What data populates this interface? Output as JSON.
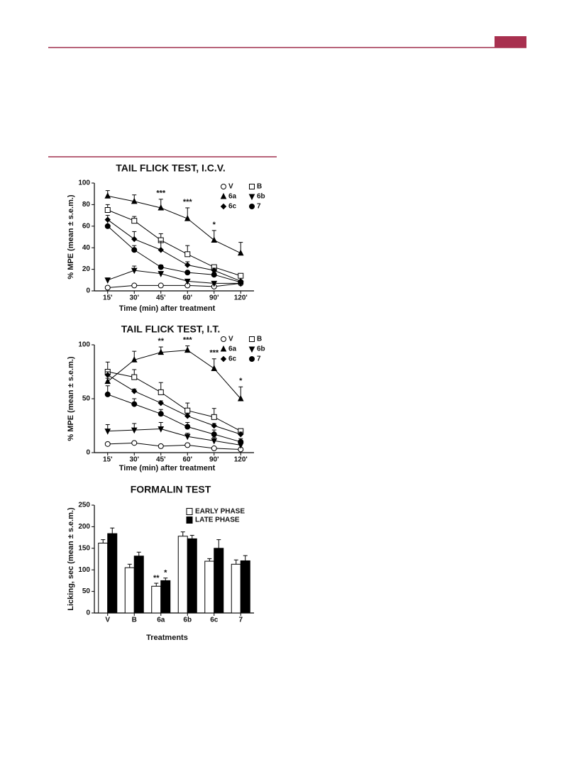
{
  "chart_data": [
    {
      "type": "line",
      "title": "TAIL FLICK TEST, I.C.V.",
      "x_label": "Time (min) after treatment",
      "y_label": "% MPE (mean ± s.e.m.)",
      "categories": [
        "15'",
        "30'",
        "45'",
        "60'",
        "90'",
        "120'"
      ],
      "ylim": [
        0,
        100
      ],
      "yticks": [
        0,
        20,
        40,
        60,
        80,
        100
      ],
      "series": [
        {
          "name": "V",
          "marker": "circle-open",
          "color": "#000000",
          "values": [
            3,
            5,
            5,
            5,
            4,
            7
          ],
          "errors": [
            1,
            1,
            1,
            1,
            1,
            1
          ]
        },
        {
          "name": "B",
          "marker": "square-open",
          "color": "#000000",
          "values": [
            75,
            65,
            47,
            34,
            22,
            14
          ],
          "errors": [
            5,
            4,
            6,
            8,
            2,
            2
          ]
        },
        {
          "name": "6a",
          "marker": "triangle-up",
          "color": "#000000",
          "values": [
            88,
            83,
            77,
            67,
            47,
            35
          ],
          "errors": [
            5,
            6,
            8,
            10,
            9,
            10
          ]
        },
        {
          "name": "6b",
          "marker": "triangle-down",
          "color": "#000000",
          "values": [
            10,
            19,
            16,
            9,
            7,
            7
          ],
          "errors": [
            2,
            4,
            2,
            1,
            1,
            1
          ]
        },
        {
          "name": "6c",
          "marker": "diamond",
          "color": "#000000",
          "values": [
            66,
            48,
            38,
            24,
            19,
            9
          ],
          "errors": [
            4,
            7,
            8,
            3,
            2,
            1
          ]
        },
        {
          "name": "7",
          "marker": "circle",
          "color": "#000000",
          "values": [
            60,
            38,
            22,
            17,
            15,
            8
          ],
          "errors": [
            6,
            4,
            2,
            1,
            2,
            1
          ]
        }
      ],
      "annotations": [
        {
          "text": "***",
          "category": "45'"
        },
        {
          "text": "***",
          "category": "60'"
        },
        {
          "text": "*",
          "category": "90'"
        }
      ]
    },
    {
      "type": "line",
      "title": "TAIL FLICK TEST, I.T.",
      "x_label": "Time (min) after treatment",
      "y_label": "% MPE (mean ± s.e.m.)",
      "categories": [
        "15'",
        "30'",
        "45'",
        "60'",
        "90'",
        "120'"
      ],
      "ylim": [
        0,
        100
      ],
      "yticks": [
        0,
        50,
        100
      ],
      "series": [
        {
          "name": "V",
          "marker": "circle-open",
          "color": "#000000",
          "values": [
            8,
            9,
            6,
            7,
            4,
            3
          ],
          "errors": [
            1,
            1,
            1,
            1,
            1,
            1
          ]
        },
        {
          "name": "B",
          "marker": "square-open",
          "color": "#000000",
          "values": [
            75,
            70,
            56,
            39,
            33,
            20
          ],
          "errors": [
            9,
            7,
            9,
            7,
            8,
            2
          ]
        },
        {
          "name": "6a",
          "marker": "triangle-up",
          "color": "#000000",
          "values": [
            66,
            86,
            93,
            95,
            78,
            50
          ],
          "errors": [
            3,
            8,
            5,
            4,
            9,
            11
          ]
        },
        {
          "name": "6b",
          "marker": "triangle-down",
          "color": "#000000",
          "values": [
            20,
            21,
            22,
            15,
            11,
            7
          ],
          "errors": [
            6,
            6,
            6,
            3,
            3,
            2
          ]
        },
        {
          "name": "6c",
          "marker": "diamond",
          "color": "#000000",
          "values": [
            72,
            57,
            46,
            34,
            25,
            17
          ],
          "errors": [
            3,
            2,
            2,
            2,
            2,
            2
          ]
        },
        {
          "name": "7",
          "marker": "circle",
          "color": "#000000",
          "values": [
            54,
            45,
            36,
            24,
            17,
            10
          ],
          "errors": [
            8,
            5,
            4,
            4,
            4,
            3
          ]
        }
      ],
      "annotations": [
        {
          "text": "**",
          "category": "45'"
        },
        {
          "text": "***",
          "category": "60'"
        },
        {
          "text": "***",
          "category": "90'"
        },
        {
          "text": "*",
          "category": "120'"
        }
      ]
    },
    {
      "type": "bar",
      "title": "FORMALIN TEST",
      "x_label": "Treatments",
      "y_label": "Licking, sec (mean ± s.e.m.)",
      "categories": [
        "V",
        "B",
        "6a",
        "6b",
        "6c",
        "7"
      ],
      "ylim": [
        0,
        250
      ],
      "yticks": [
        0,
        50,
        100,
        150,
        200,
        250
      ],
      "series": [
        {
          "name": "EARLY PHASE",
          "color": "#ffffff",
          "values": [
            162,
            105,
            62,
            178,
            120,
            113
          ],
          "errors": [
            8,
            8,
            7,
            10,
            6,
            10
          ]
        },
        {
          "name": "LATE PHASE",
          "color": "#000000",
          "values": [
            184,
            132,
            75,
            172,
            150,
            121
          ],
          "errors": [
            13,
            9,
            6,
            8,
            20,
            12
          ]
        }
      ],
      "annotations": [
        {
          "text": "**",
          "category": "6a",
          "series": "EARLY PHASE"
        },
        {
          "text": "*",
          "category": "6a",
          "series": "LATE PHASE"
        }
      ]
    }
  ]
}
